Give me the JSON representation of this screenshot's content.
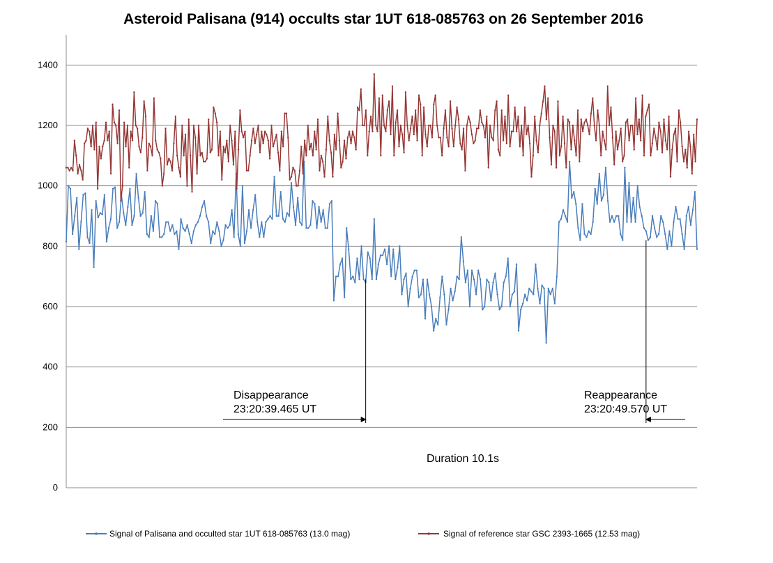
{
  "chart_data": {
    "type": "line",
    "title": "Asteroid Palisana (914) occults star 1UT 618-085763 on 26 September 2016",
    "xlabel": "",
    "ylabel": "",
    "ylim": [
      0,
      1500
    ],
    "yticks": [
      0,
      200,
      400,
      600,
      800,
      1000,
      1200,
      1400
    ],
    "grid": true,
    "legend_position": "bottom",
    "annotations": {
      "disappearance": {
        "label": "Disappearance",
        "time": "23:20:39.465 UT",
        "sample": 141
      },
      "reappearance": {
        "label": "Reappearance",
        "time": "23:20:49.570 UT",
        "sample": 273
      },
      "duration": "Duration 10.1s"
    },
    "series": [
      {
        "name": "Signal of Palisana and occulted star 1UT 618-085763 (13.0 mag)",
        "color": "#4a7ebb",
        "values": [
          815,
          1000,
          990,
          840,
          900,
          960,
          790,
          880,
          970,
          975,
          830,
          810,
          920,
          730,
          950,
          895,
          910,
          905,
          970,
          815,
          860,
          890,
          990,
          995,
          860,
          880,
          970,
          910,
          870,
          930,
          990,
          870,
          900,
          1040,
          960,
          900,
          910,
          980,
          840,
          830,
          900,
          850,
          950,
          940,
          830,
          830,
          840,
          880,
          880,
          850,
          870,
          840,
          850,
          790,
          890,
          860,
          850,
          870,
          840,
          810,
          850,
          870,
          880,
          900,
          930,
          950,
          900,
          880,
          810,
          850,
          840,
          880,
          850,
          800,
          820,
          870,
          860,
          870,
          920,
          830,
          1040,
          840,
          800,
          1000,
          810,
          850,
          920,
          860,
          920,
          970,
          880,
          830,
          880,
          830,
          880,
          890,
          900,
          890,
          1030,
          900,
          900,
          980,
          890,
          880,
          910,
          900,
          1010,
          930,
          870,
          960,
          880,
          870,
          1080,
          860,
          860,
          870,
          950,
          940,
          860,
          930,
          880,
          920,
          860,
          860,
          940,
          950,
          620,
          700,
          700,
          740,
          760,
          630,
          860,
          790,
          690,
          700,
          680,
          760,
          690,
          800,
          690,
          680,
          780,
          760,
          690,
          890,
          690,
          740,
          770,
          770,
          790,
          740,
          800,
          700,
          790,
          690,
          730,
          800,
          640,
          690,
          710,
          600,
          660,
          700,
          720,
          720,
          630,
          640,
          690,
          560,
          690,
          640,
          600,
          520,
          560,
          540,
          630,
          700,
          640,
          540,
          590,
          660,
          620,
          650,
          700,
          690,
          830,
          750,
          680,
          720,
          600,
          720,
          690,
          640,
          720,
          690,
          590,
          600,
          690,
          680,
          620,
          680,
          710,
          640,
          590,
          600,
          680,
          700,
          760,
          600,
          640,
          650,
          740,
          520,
          590,
          610,
          640,
          620,
          660,
          650,
          640,
          740,
          660,
          610,
          670,
          660,
          480,
          660,
          640,
          660,
          610,
          700,
          880,
          890,
          920,
          900,
          880,
          1080,
          960,
          980,
          940,
          860,
          820,
          940,
          840,
          830,
          850,
          840,
          880,
          990,
          940,
          1040,
          950,
          970,
          1060,
          950,
          880,
          900,
          880,
          900,
          900,
          840,
          820,
          1060,
          880,
          1010,
          880,
          960,
          880,
          1000,
          930,
          900,
          860,
          850,
          820,
          830,
          900,
          860,
          830,
          840,
          900,
          880,
          840,
          790,
          850,
          800,
          880,
          930,
          890,
          890,
          840,
          790,
          900,
          930,
          870,
          920,
          980,
          790
        ]
      },
      {
        "name": "Signal of reference star GSC 2393-1665 (12.53 mag)",
        "color": "#953735",
        "values": [
          1060,
          1060,
          1050,
          1060,
          1050,
          1150,
          1100,
          1040,
          1070,
          1050,
          1020,
          1140,
          1150,
          1190,
          1180,
          1130,
          1200,
          1120,
          1210,
          990,
          1130,
          1090,
          1130,
          1150,
          1210,
          1150,
          1180,
          1040,
          1270,
          1210,
          1200,
          1140,
          1250,
          950,
          1000,
          1210,
          1130,
          1200,
          1060,
          1180,
          1150,
          1310,
          1200,
          1190,
          1130,
          1110,
          1160,
          1280,
          1230,
          1050,
          1140,
          1130,
          1100,
          1290,
          1150,
          1120,
          1110,
          1090,
          1000,
          1040,
          1190,
          1070,
          1090,
          1080,
          1050,
          1140,
          1230,
          1100,
          1060,
          1030,
          1200,
          1100,
          1170,
          1000,
          1220,
          1100,
          980,
          1200,
          1160,
          1040,
          1200,
          1100,
          1110,
          1080,
          1080,
          1090,
          1220,
          1110,
          1120,
          1260,
          1240,
          1210,
          1100,
          1180,
          1020,
          1130,
          1110,
          1150,
          1080,
          1200,
          1150,
          1070,
          1180,
          990,
          1120,
          1250,
          1180,
          1160,
          1180,
          1050,
          1050,
          1100,
          1150,
          1190,
          1140,
          1170,
          1200,
          1110,
          1180,
          1140,
          1180,
          1170,
          1150,
          1090,
          1200,
          1130,
          1150,
          1170,
          1110,
          1050,
          1180,
          1130,
          1240,
          1240,
          1160,
          1020,
          1030,
          1060,
          1050,
          1000,
          1000,
          1050,
          1130,
          1040,
          1150,
          1100,
          1200,
          1120,
          1140,
          1100,
          1180,
          1120,
          1220,
          1050,
          1100,
          1080,
          1030,
          1120,
          1230,
          1150,
          1110,
          1030,
          1170,
          1120,
          1240,
          1150,
          1060,
          1080,
          1150,
          1090,
          1160,
          1180,
          1140,
          1180,
          1160,
          1120,
          1260,
          1250,
          1320,
          1200,
          1200,
          1250,
          1100,
          1180,
          1230,
          1180,
          1370,
          1200,
          1180,
          1290,
          1100,
          1300,
          1200,
          1180,
          1250,
          1280,
          1170,
          1330,
          1100,
          1210,
          1250,
          1130,
          1200,
          1170,
          1110,
          1310,
          1200,
          1150,
          1190,
          1230,
          1170,
          1250,
          1150,
          1300,
          1270,
          1100,
          1260,
          1170,
          1130,
          1200,
          1200,
          1160,
          1270,
          1300,
          1200,
          1160,
          1160,
          1100,
          1190,
          1250,
          1160,
          1130,
          1280,
          1190,
          1130,
          1200,
          1260,
          1220,
          1140,
          1120,
          1190,
          1050,
          1200,
          1230,
          1210,
          1170,
          1140,
          1150,
          1190,
          1190,
          1250,
          1210,
          1200,
          1160,
          1230,
          1060,
          1200,
          1160,
          1150,
          1250,
          1280,
          1120,
          1100,
          1250,
          1150,
          1230,
          1140,
          1300,
          1130,
          1180,
          1180,
          1260,
          1180,
          1230,
          1130,
          1200,
          1100,
          1260,
          1170,
          1200,
          1140,
          1030,
          1100,
          1230,
          1150,
          1110,
          1200,
          1240,
          1280,
          1330,
          1220,
          1290,
          1160,
          1070,
          1200,
          1180,
          1060,
          1280,
          1100,
          1130,
          1230,
          1140,
          1060,
          1220,
          1210,
          1120,
          1200,
          1150,
          1100,
          1250,
          1080,
          1220,
          1180,
          1210,
          1220,
          1200,
          1170,
          1240,
          1290,
          1200,
          1150,
          1250,
          1200,
          1100,
          1180,
          1150,
          1120,
          1330,
          1200,
          1260,
          1160,
          1070,
          1180,
          1120,
          1150,
          1190,
          1080,
          1100,
          1210,
          1220,
          1150,
          1200,
          1200,
          1120,
          1290,
          1170,
          1220,
          1150,
          1300,
          1100,
          1230,
          1250,
          1270,
          1100,
          1140,
          1190,
          1160,
          1120,
          1210,
          1180,
          1110,
          1220,
          1150,
          1120,
          1230,
          1030,
          1120,
          1170,
          1190,
          1080,
          1250,
          1210,
          1130,
          1080,
          1120,
          1060,
          1180,
          1130,
          1040,
          1170,
          1080,
          1220
        ]
      }
    ]
  }
}
